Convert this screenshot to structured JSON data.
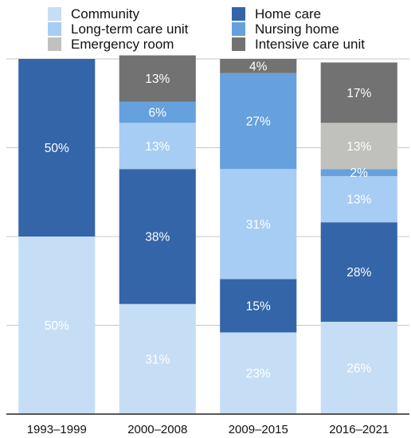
{
  "chart_data": {
    "type": "bar",
    "stacked": true,
    "percent_stacked": true,
    "categories": [
      "1993–1999",
      "2000–2008",
      "2009–2015",
      "2016–2021"
    ],
    "series": [
      {
        "name": "Community",
        "color": "#c6def5",
        "values": [
          50,
          31,
          23,
          26
        ],
        "labels": [
          "50%",
          "31%",
          "23%",
          "26%"
        ]
      },
      {
        "name": "Home care",
        "color": "#3465a8",
        "values": [
          50,
          38,
          15,
          28
        ],
        "labels": [
          "50%",
          "38%",
          "15%",
          "28%"
        ]
      },
      {
        "name": "Long-term care unit",
        "color": "#a7cdf4",
        "values": [
          0,
          13,
          31,
          13
        ],
        "labels": [
          "",
          "13%",
          "31%",
          "13%"
        ]
      },
      {
        "name": "Nursing home",
        "color": "#66a0dd",
        "values": [
          0,
          6,
          27,
          2
        ],
        "labels": [
          "",
          "6%",
          "27%",
          "2%"
        ]
      },
      {
        "name": "Emergency room",
        "color": "#c0c0bc",
        "values": [
          0,
          0,
          0,
          13
        ],
        "labels": [
          "",
          "",
          "",
          "13%"
        ]
      },
      {
        "name": "Intensive care unit",
        "color": "#727272",
        "values": [
          0,
          13,
          4,
          17
        ],
        "labels": [
          "",
          "13%",
          "4%",
          "17%"
        ]
      }
    ],
    "ylim": [
      0,
      100
    ],
    "grid": true,
    "legend_position": "top"
  }
}
